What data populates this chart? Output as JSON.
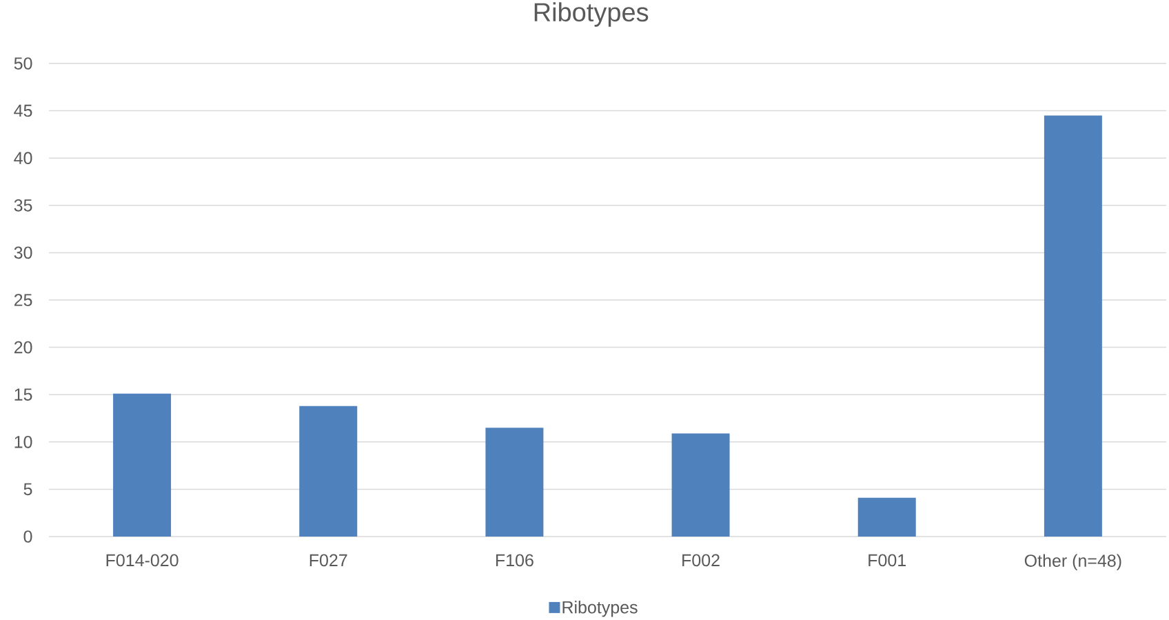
{
  "chart_data": {
    "type": "bar",
    "title": "Ribotypes",
    "categories": [
      "F014-020",
      "F027",
      "F106",
      "F002",
      "F001",
      "Other (n=48)"
    ],
    "series": [
      {
        "name": "Ribotypes",
        "color": "#4f81bd",
        "values": [
          15.1,
          13.8,
          11.5,
          10.9,
          4.1,
          44.5
        ]
      }
    ],
    "ylim": [
      0,
      50
    ],
    "yticks": [
      0,
      5,
      10,
      15,
      20,
      25,
      30,
      35,
      40,
      45,
      50
    ],
    "grid": "y",
    "legend": "bottom"
  }
}
